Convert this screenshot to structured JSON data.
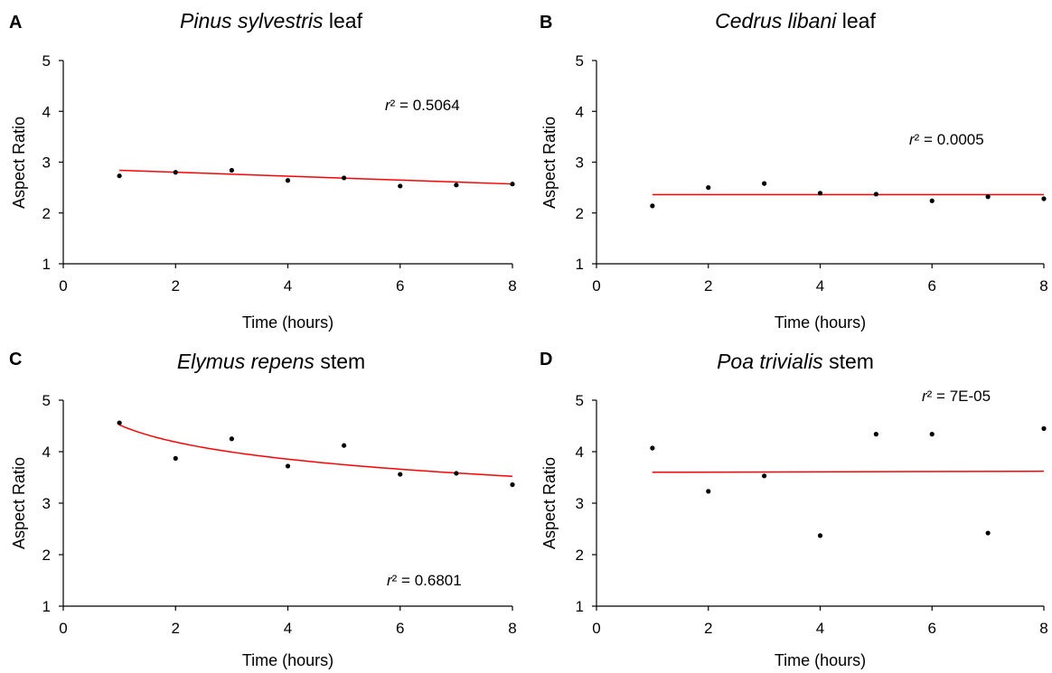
{
  "chart_data": [
    {
      "type": "scatter",
      "panel_letter": "A",
      "title_italic": "Pinus sylvestris",
      "title_rest": " leaf",
      "xlabel": "Time (hours)",
      "ylabel": "Aspect Ratio",
      "xlim": [
        0,
        8
      ],
      "ylim": [
        1,
        5
      ],
      "xticks": [
        "0",
        "2",
        "4",
        "6",
        "8"
      ],
      "yticks": [
        "1",
        "2",
        "3",
        "4",
        "5"
      ],
      "points": [
        [
          1,
          2.73
        ],
        [
          2,
          2.8
        ],
        [
          3,
          2.84
        ],
        [
          4,
          2.64
        ],
        [
          5,
          2.69
        ],
        [
          6,
          2.53
        ],
        [
          7,
          2.55
        ],
        [
          8,
          2.57
        ]
      ],
      "trendline": {
        "kind": "linear",
        "from": [
          1,
          2.84
        ],
        "to": [
          8,
          2.57
        ]
      },
      "r2_symbol": "r",
      "r2_text": "² = 0.5064",
      "marker_color": "#000000",
      "trend_color": "#ff0000"
    },
    {
      "type": "scatter",
      "panel_letter": "B",
      "title_italic": "Cedrus libani",
      "title_rest": " leaf",
      "xlabel": "Time (hours)",
      "ylabel": "Aspect Ratio",
      "xlim": [
        0,
        8
      ],
      "ylim": [
        1,
        5
      ],
      "xticks": [
        "0",
        "2",
        "4",
        "6",
        "8"
      ],
      "yticks": [
        "1",
        "2",
        "3",
        "4",
        "5"
      ],
      "points": [
        [
          1,
          2.14
        ],
        [
          2,
          2.5
        ],
        [
          3,
          2.58
        ],
        [
          4,
          2.39
        ],
        [
          5,
          2.37
        ],
        [
          6,
          2.24
        ],
        [
          7,
          2.32
        ],
        [
          8,
          2.28
        ]
      ],
      "trendline": {
        "kind": "linear",
        "from": [
          1,
          2.36
        ],
        "to": [
          8,
          2.36
        ]
      },
      "r2_symbol": "r",
      "r2_text": "² = 0.0005",
      "marker_color": "#000000",
      "trend_color": "#ff0000"
    },
    {
      "type": "scatter",
      "panel_letter": "C",
      "title_italic": "Elymus repens",
      "title_rest": " stem",
      "xlabel": "Time (hours)",
      "ylabel": "Aspect Ratio",
      "xlim": [
        0,
        8
      ],
      "ylim": [
        1,
        5
      ],
      "xticks": [
        "0",
        "2",
        "4",
        "6",
        "8"
      ],
      "yticks": [
        "1",
        "2",
        "3",
        "4",
        "5"
      ],
      "points": [
        [
          1,
          4.56
        ],
        [
          2,
          3.87
        ],
        [
          3,
          4.25
        ],
        [
          4,
          3.72
        ],
        [
          5,
          4.12
        ],
        [
          6,
          3.56
        ],
        [
          7,
          3.58
        ],
        [
          8,
          3.36
        ]
      ],
      "trendline": {
        "kind": "log",
        "a": 4.52,
        "b": -0.48,
        "from_x": 1,
        "to_x": 8
      },
      "r2_symbol": "r",
      "r2_text": "² = 0.6801",
      "marker_color": "#000000",
      "trend_color": "#ff0000"
    },
    {
      "type": "scatter",
      "panel_letter": "D",
      "title_italic": "Poa trivialis",
      "title_rest": " stem",
      "xlabel": "Time (hours)",
      "ylabel": "Aspect Ratio",
      "xlim": [
        0,
        8
      ],
      "ylim": [
        1,
        5
      ],
      "xticks": [
        "0",
        "2",
        "4",
        "6",
        "8"
      ],
      "yticks": [
        "1",
        "2",
        "3",
        "4",
        "5"
      ],
      "points": [
        [
          1,
          4.07
        ],
        [
          2,
          3.23
        ],
        [
          3,
          3.53
        ],
        [
          4,
          2.37
        ],
        [
          5,
          4.34
        ],
        [
          6,
          4.34
        ],
        [
          7,
          2.42
        ],
        [
          8,
          4.45
        ]
      ],
      "trendline": {
        "kind": "linear",
        "from": [
          1,
          3.6
        ],
        "to": [
          8,
          3.62
        ]
      },
      "r2_symbol": "r",
      "r2_text": "² = 7E-05",
      "marker_color": "#000000",
      "trend_color": "#ff0000"
    }
  ]
}
